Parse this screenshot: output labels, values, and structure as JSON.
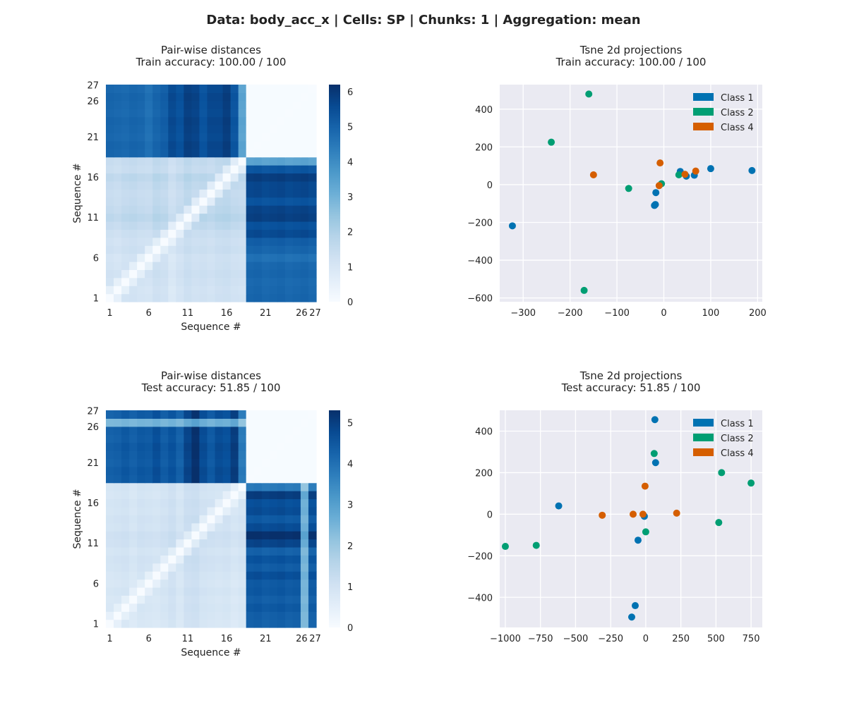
{
  "figure": {
    "suptitle": "Data: body_acc_x | Cells: SP | Chunks: 1 | Aggregation: mean"
  },
  "colors": {
    "class_1": "#0072B2",
    "class_2": "#009E73",
    "class_4": "#D55E00",
    "scatter_bg": "#EAEAF2",
    "grid": "#FFFFFF",
    "heat_low": "#F7FBFF",
    "heat_high": "#08306B"
  },
  "chart_data": [
    {
      "type": "heatmap",
      "title": "Pair-wise distances\nTrain accuracy: 100.00 / 100",
      "xlabel": "Sequence #",
      "ylabel": "Sequence #",
      "n": 27,
      "tick_labels": [
        "1",
        "6",
        "11",
        "16",
        "21",
        "26",
        "27"
      ],
      "tick_positions": [
        1,
        6,
        11,
        16,
        21,
        26,
        27
      ],
      "colormap": "Blues",
      "vmin": 0,
      "vmax": 6.2,
      "colorbar_ticks": [
        0,
        1,
        2,
        3,
        4,
        5,
        6
      ],
      "blocks": [
        {
          "rows": [
            1,
            18
          ],
          "cols": [
            1,
            18
          ],
          "approx_value": 1.3,
          "description_value": "within-group distances ~0.3-2.5"
        },
        {
          "rows": [
            1,
            18
          ],
          "cols": [
            19,
            27
          ],
          "approx_value": 5.0
        },
        {
          "rows": [
            19,
            27
          ],
          "cols": [
            1,
            18
          ],
          "approx_value": 5.0
        },
        {
          "rows": [
            19,
            27
          ],
          "cols": [
            19,
            27
          ],
          "approx_value": 0.0
        }
      ],
      "col_profile_offdiag": [
        4.6,
        4.8,
        4.6,
        5.0,
        4.7,
        4.9,
        4.6,
        5.0,
        5.6,
        6.0,
        5.7,
        5.3,
        5.2,
        5.7,
        5.6,
        6.0,
        5.2,
        0.0
      ],
      "row_profile_offdiag": [
        5.3,
        5.0,
        5.1,
        4.9,
        5.1,
        4.4,
        5.3,
        5.2,
        5.6,
        4.8,
        6.0,
        6.2,
        5.5,
        5.6,
        5.7,
        5.8,
        5.4,
        3.4
      ],
      "within_row_bias": [
        0.5,
        0.4,
        0.6,
        0.8,
        0.6,
        0.5,
        0.9,
        0.7,
        1.0,
        1.5,
        1.9,
        1.6,
        1.4,
        1.3,
        1.5,
        1.8,
        1.2,
        1.4
      ],
      "within_col_bias": [
        1.4,
        1.2,
        1.5,
        1.6,
        1.4,
        1.3,
        1.8,
        1.6,
        0.9,
        1.4,
        1.9,
        1.6,
        1.7,
        1.5,
        1.8,
        1.9,
        1.6,
        1.5
      ],
      "light_strip_rows": [
        27
      ],
      "light_strip_cols": []
    },
    {
      "type": "scatter",
      "title": "Tsne 2d projections\nTrain accuracy: 100.00 / 100",
      "xlim": [
        -350,
        210
      ],
      "ylim": [
        -620,
        530
      ],
      "xticks": [
        -300,
        -200,
        -100,
        0,
        100,
        200
      ],
      "yticks": [
        -600,
        -400,
        -200,
        0,
        200,
        400
      ],
      "grid": true,
      "legend": "top-right",
      "series": [
        {
          "name": "Class 1",
          "color_key": "class_1",
          "points": [
            [
              -323,
              -218
            ],
            [
              -18,
              -105
            ],
            [
              -20,
              -110
            ],
            [
              -17,
              -42
            ],
            [
              35,
              70
            ],
            [
              48,
              45
            ],
            [
              65,
              50
            ],
            [
              100,
              85
            ],
            [
              188,
              75
            ]
          ]
        },
        {
          "name": "Class 2",
          "color_key": "class_2",
          "points": [
            [
              -160,
              480
            ],
            [
              -240,
              225
            ],
            [
              -75,
              -20
            ],
            [
              -170,
              -560
            ],
            [
              -5,
              5
            ],
            [
              32,
              52
            ]
          ]
        },
        {
          "name": "Class 4",
          "color_key": "class_4",
          "points": [
            [
              -150,
              52
            ],
            [
              -8,
              115
            ],
            [
              -10,
              -5
            ],
            [
              45,
              55
            ],
            [
              68,
              72
            ]
          ]
        }
      ]
    },
    {
      "type": "heatmap",
      "title": "Pair-wise distances\nTest accuracy: 51.85 / 100",
      "xlabel": "Sequence #",
      "ylabel": "Sequence #",
      "n": 27,
      "tick_labels": [
        "1",
        "6",
        "11",
        "16",
        "21",
        "26",
        "27"
      ],
      "tick_positions": [
        1,
        6,
        11,
        16,
        21,
        26,
        27
      ],
      "colormap": "Blues",
      "vmin": 0,
      "vmax": 5.3,
      "colorbar_ticks": [
        0,
        1,
        2,
        3,
        4,
        5
      ],
      "blocks": [
        {
          "rows": [
            1,
            18
          ],
          "cols": [
            1,
            18
          ],
          "approx_value": 1.0
        },
        {
          "rows": [
            1,
            18
          ],
          "cols": [
            19,
            27
          ],
          "approx_value": 4.3
        },
        {
          "rows": [
            19,
            27
          ],
          "cols": [
            1,
            18
          ],
          "approx_value": 4.3
        },
        {
          "rows": [
            19,
            27
          ],
          "cols": [
            19,
            27
          ],
          "approx_value": 0.0
        }
      ],
      "col_profile_offdiag": [
        4.0,
        4.3,
        4.4,
        4.2,
        4.6,
        5.0,
        4.4,
        4.3,
        4.9,
        4.2,
        5.0,
        5.3,
        4.5,
        4.6,
        4.9,
        4.5,
        5.1,
        0.0
      ],
      "row_profile_offdiag": [
        4.6,
        4.4,
        4.6,
        4.5,
        4.4,
        3.9,
        5.0,
        4.5,
        4.3,
        4.4,
        4.8,
        5.3,
        5.0,
        4.3,
        4.6,
        4.8,
        5.0,
        3.8
      ],
      "within_row_bias": [
        0.4,
        0.5,
        0.6,
        0.5,
        0.7,
        0.5,
        0.6,
        0.8,
        0.9,
        0.7,
        1.0,
        1.1,
        0.8,
        0.9,
        0.7,
        0.8,
        0.6,
        0.7
      ],
      "within_col_bias": [
        0.7,
        0.8,
        0.9,
        0.6,
        0.9,
        0.8,
        0.7,
        0.9,
        1.2,
        0.7,
        1.3,
        1.4,
        1.0,
        0.9,
        0.8,
        0.9,
        0.6,
        0.8
      ],
      "light_strip_rows": [
        27
      ],
      "light_strip_cols": [
        26
      ]
    },
    {
      "type": "scatter",
      "title": "Tsne 2d projections\nTest accuracy: 51.85 / 100",
      "xlim": [
        -1040,
        830
      ],
      "ylim": [
        -545,
        500
      ],
      "xticks": [
        -1000,
        -750,
        -500,
        -250,
        0,
        250,
        500,
        750
      ],
      "yticks": [
        -400,
        -200,
        0,
        200,
        400
      ],
      "grid": true,
      "legend": "top-right",
      "series": [
        {
          "name": "Class 1",
          "color_key": "class_1",
          "points": [
            [
              -620,
              40
            ],
            [
              -55,
              -125
            ],
            [
              -10,
              -10
            ],
            [
              65,
              455
            ],
            [
              70,
              248
            ],
            [
              -75,
              -440
            ],
            [
              -100,
              -495
            ]
          ]
        },
        {
          "name": "Class 2",
          "color_key": "class_2",
          "points": [
            [
              -1000,
              -155
            ],
            [
              -780,
              -150
            ],
            [
              0,
              -85
            ],
            [
              540,
              200
            ],
            [
              750,
              150
            ],
            [
              520,
              -40
            ],
            [
              60,
              292
            ]
          ]
        },
        {
          "name": "Class 4",
          "color_key": "class_4",
          "points": [
            [
              -310,
              -5
            ],
            [
              -90,
              0
            ],
            [
              -20,
              0
            ],
            [
              -5,
              135
            ],
            [
              220,
              5
            ]
          ]
        }
      ]
    }
  ]
}
